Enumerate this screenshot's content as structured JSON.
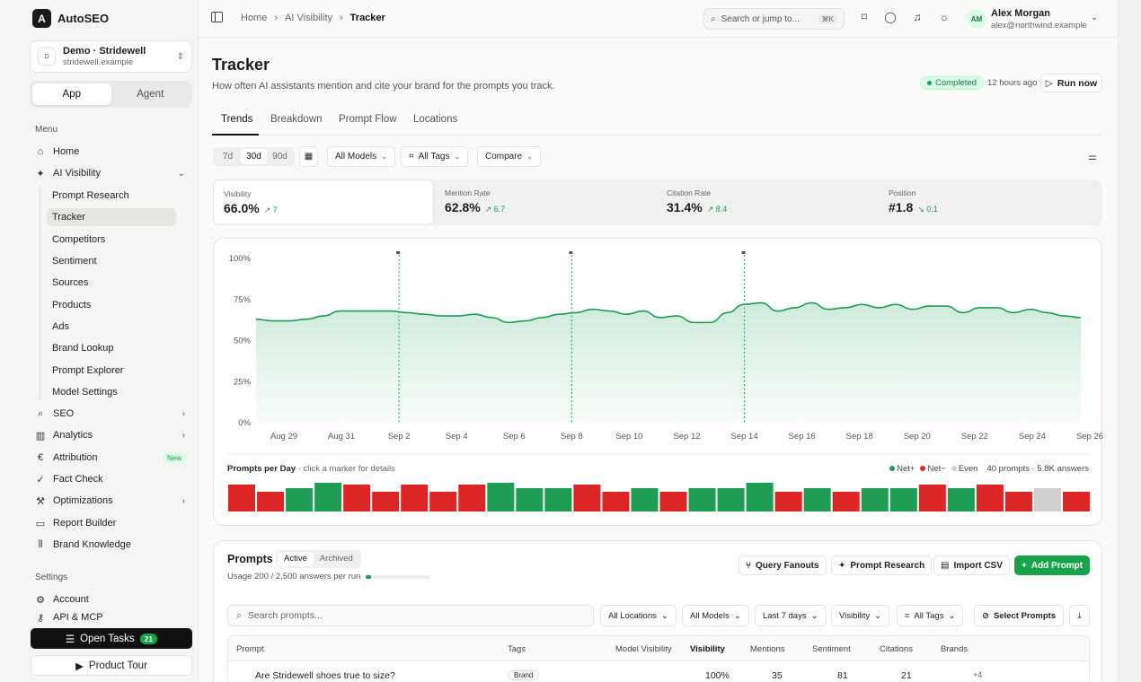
{
  "app": {
    "name": "AutoSEO",
    "logo_letter": "A"
  },
  "workspace": {
    "icon": "D",
    "name": "Demo · Stridewell",
    "domain": "stridewell.example"
  },
  "mode_tabs": [
    "App",
    "Agent"
  ],
  "sidebar": {
    "menu_label": "Menu",
    "items": [
      {
        "label": "Home",
        "icon": "home-icon"
      },
      {
        "label": "AI Visibility",
        "icon": "sparkle-icon"
      },
      {
        "label": "SEO",
        "icon": "search-icon"
      },
      {
        "label": "Analytics",
        "icon": "bar-chart-icon"
      },
      {
        "label": "Attribution",
        "icon": "euro-icon",
        "badge": "New"
      },
      {
        "label": "Fact Check",
        "icon": "check-icon"
      },
      {
        "label": "Optimizations",
        "icon": "wand-icon"
      },
      {
        "label": "Report Builder",
        "icon": "monitor-icon"
      },
      {
        "label": "Brand Knowledge",
        "icon": "library-icon"
      }
    ],
    "sub_items": [
      "Prompt Research",
      "Tracker",
      "Competitors",
      "Sentiment",
      "Sources",
      "Products",
      "Ads",
      "Brand Lookup",
      "Prompt Explorer",
      "Model Settings"
    ],
    "settings_label": "Settings",
    "settings_items": [
      {
        "label": "Account",
        "icon": "gear-icon"
      },
      {
        "label": "API & MCP",
        "icon": "key-icon"
      }
    ],
    "open_tasks": {
      "label": "Open Tasks",
      "count": "21"
    },
    "product_tour": "Product Tour"
  },
  "topbar": {
    "breadcrumb": [
      "Home",
      "AI Visibility",
      "Tracker"
    ],
    "search_placeholder": "Search or jump to...",
    "search_kbd": "⌘K",
    "user": {
      "initials": "AM",
      "name": "Alex Morgan",
      "email": "alex@northwind.example"
    }
  },
  "page": {
    "title": "Tracker",
    "subtitle": "How often AI assistants mention and cite your brand for the prompts you track.",
    "status": "Completed",
    "last_run": "12 hours ago",
    "run_now": "Run now",
    "tabs": [
      "Trends",
      "Breakdown",
      "Prompt Flow",
      "Locations"
    ]
  },
  "filters": {
    "ranges": [
      "7d",
      "30d",
      "90d"
    ],
    "models": "All Models",
    "tags": "All Tags",
    "compare": "Compare"
  },
  "kpis": [
    {
      "label": "Visibility",
      "value": "66.0%",
      "delta": "7",
      "dir": "up"
    },
    {
      "label": "Mention Rate",
      "value": "62.8%",
      "delta": "6.7",
      "dir": "up"
    },
    {
      "label": "Citation Rate",
      "value": "31.4%",
      "delta": "8.4",
      "dir": "up"
    },
    {
      "label": "Position",
      "value": "#1.8",
      "delta": "0.1",
      "dir": "down"
    }
  ],
  "chart_data": {
    "type": "area",
    "series": [
      {
        "values": [
          63,
          62,
          62,
          63,
          65,
          68,
          68,
          68,
          68,
          67,
          66,
          65,
          65,
          66,
          64,
          61,
          62,
          64,
          66,
          67,
          69,
          68,
          66,
          68,
          64,
          65,
          61,
          61,
          67,
          72,
          73,
          68,
          70,
          73,
          69,
          70,
          72,
          70,
          72,
          69,
          71,
          71,
          67,
          70,
          70,
          67,
          69,
          67,
          65,
          64
        ]
      }
    ],
    "xticks": [
      "Aug 29",
      "Aug 31",
      "Sep 2",
      "Sep 4",
      "Sep 6",
      "Sep 8",
      "Sep 10",
      "Sep 12",
      "Sep 14",
      "Sep 16",
      "Sep 18",
      "Sep 20",
      "Sep 22",
      "Sep 24",
      "Sep 26"
    ],
    "yticks": [
      "0%",
      "25%",
      "50%",
      "75%",
      "100%"
    ],
    "ylim": [
      0,
      100
    ],
    "grid": false,
    "color": "#1f9d55",
    "prompts_per_day": {
      "title": "Prompts per Day",
      "hint": " · click a marker for details",
      "legend": [
        "Net+",
        "Net−",
        "Even"
      ],
      "summary": "40 prompts · 5.8K answers",
      "days": [
        "neg",
        "neg",
        "pos",
        "pos",
        "neg",
        "neg",
        "neg",
        "neg",
        "neg",
        "pos",
        "pos",
        "pos",
        "neg",
        "neg",
        "pos",
        "neg",
        "pos",
        "pos",
        "pos",
        "neg",
        "pos",
        "neg",
        "pos",
        "pos",
        "neg",
        "pos",
        "neg",
        "neg",
        "even",
        "neg"
      ],
      "colors": {
        "pos": "#1f9d55",
        "neg": "#dc2626",
        "even": "#cfcfcf"
      }
    }
  },
  "prompts": {
    "title": "Prompts",
    "seg": [
      "Active",
      "Archived"
    ],
    "usage": "Usage 200 / 2,500 answers per run",
    "actions": [
      "Query Fanouts",
      "Prompt Research",
      "Import CSV",
      "Add Prompt"
    ],
    "search_placeholder": "Search prompts...",
    "filters": [
      "All Locations",
      "All Models",
      "Last 7 days",
      "Visibility",
      "All Tags",
      "Select Prompts"
    ],
    "columns": [
      "Prompt",
      "Tags",
      "Model Visibility",
      "Visibility",
      "Mentions",
      "Sentiment",
      "Citations",
      "Brands"
    ],
    "row": {
      "prompt": "Are Stridewell shoes true to size?",
      "tag": "Brand",
      "visibility": "100%",
      "mentions": "35",
      "sentiment": "81",
      "citations": "21",
      "brands_more": "+4"
    }
  }
}
